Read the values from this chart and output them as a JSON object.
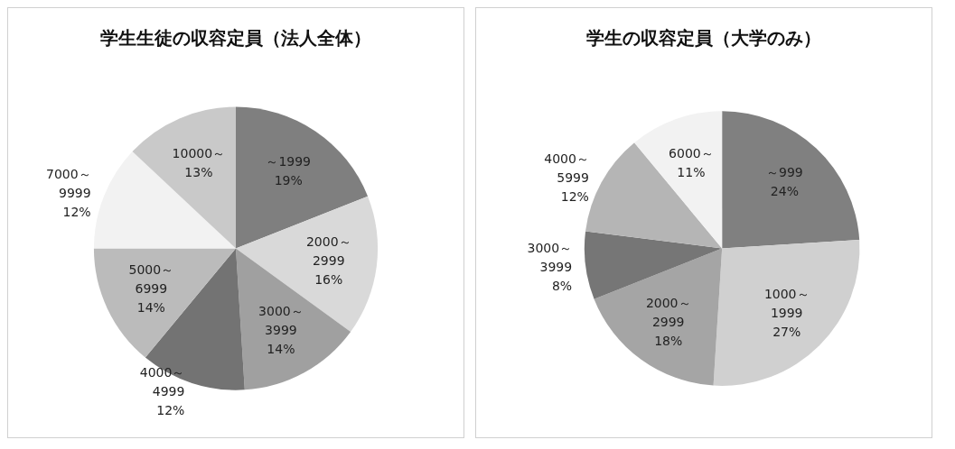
{
  "chart_data": [
    {
      "type": "pie",
      "title": "学生生徒の収容定員（法人全体）",
      "categories": [
        "～1999",
        "2000～\n2999",
        "3000～\n3999",
        "4000～\n4999",
        "5000～\n6999",
        "7000～\n9999",
        "10000～"
      ],
      "values": [
        19,
        16,
        14,
        12,
        14,
        12,
        13
      ],
      "value_labels": [
        "19%",
        "16%",
        "14%",
        "12%",
        "14%",
        "12%",
        "13%"
      ],
      "colors": [
        "#7f7f7f",
        "#d9d9d9",
        "#a0a0a0",
        "#737373",
        "#bbbbbb",
        "#f2f2f2",
        "#c9c9c9"
      ],
      "data_labels": true,
      "legend": false
    },
    {
      "type": "pie",
      "title": "学生の収容定員（大学のみ）",
      "categories": [
        "～999",
        "1000～\n1999",
        "2000～\n2999",
        "3000～\n3999",
        "4000～\n5999",
        "6000～"
      ],
      "values": [
        24,
        27,
        18,
        8,
        12,
        11
      ],
      "value_labels": [
        "24%",
        "27%",
        "18%",
        "8%",
        "12%",
        "11%"
      ],
      "colors": [
        "#808080",
        "#d0d0d0",
        "#a5a5a5",
        "#767676",
        "#b5b5b5",
        "#f2f2f2"
      ],
      "data_labels": true,
      "legend": false
    }
  ]
}
